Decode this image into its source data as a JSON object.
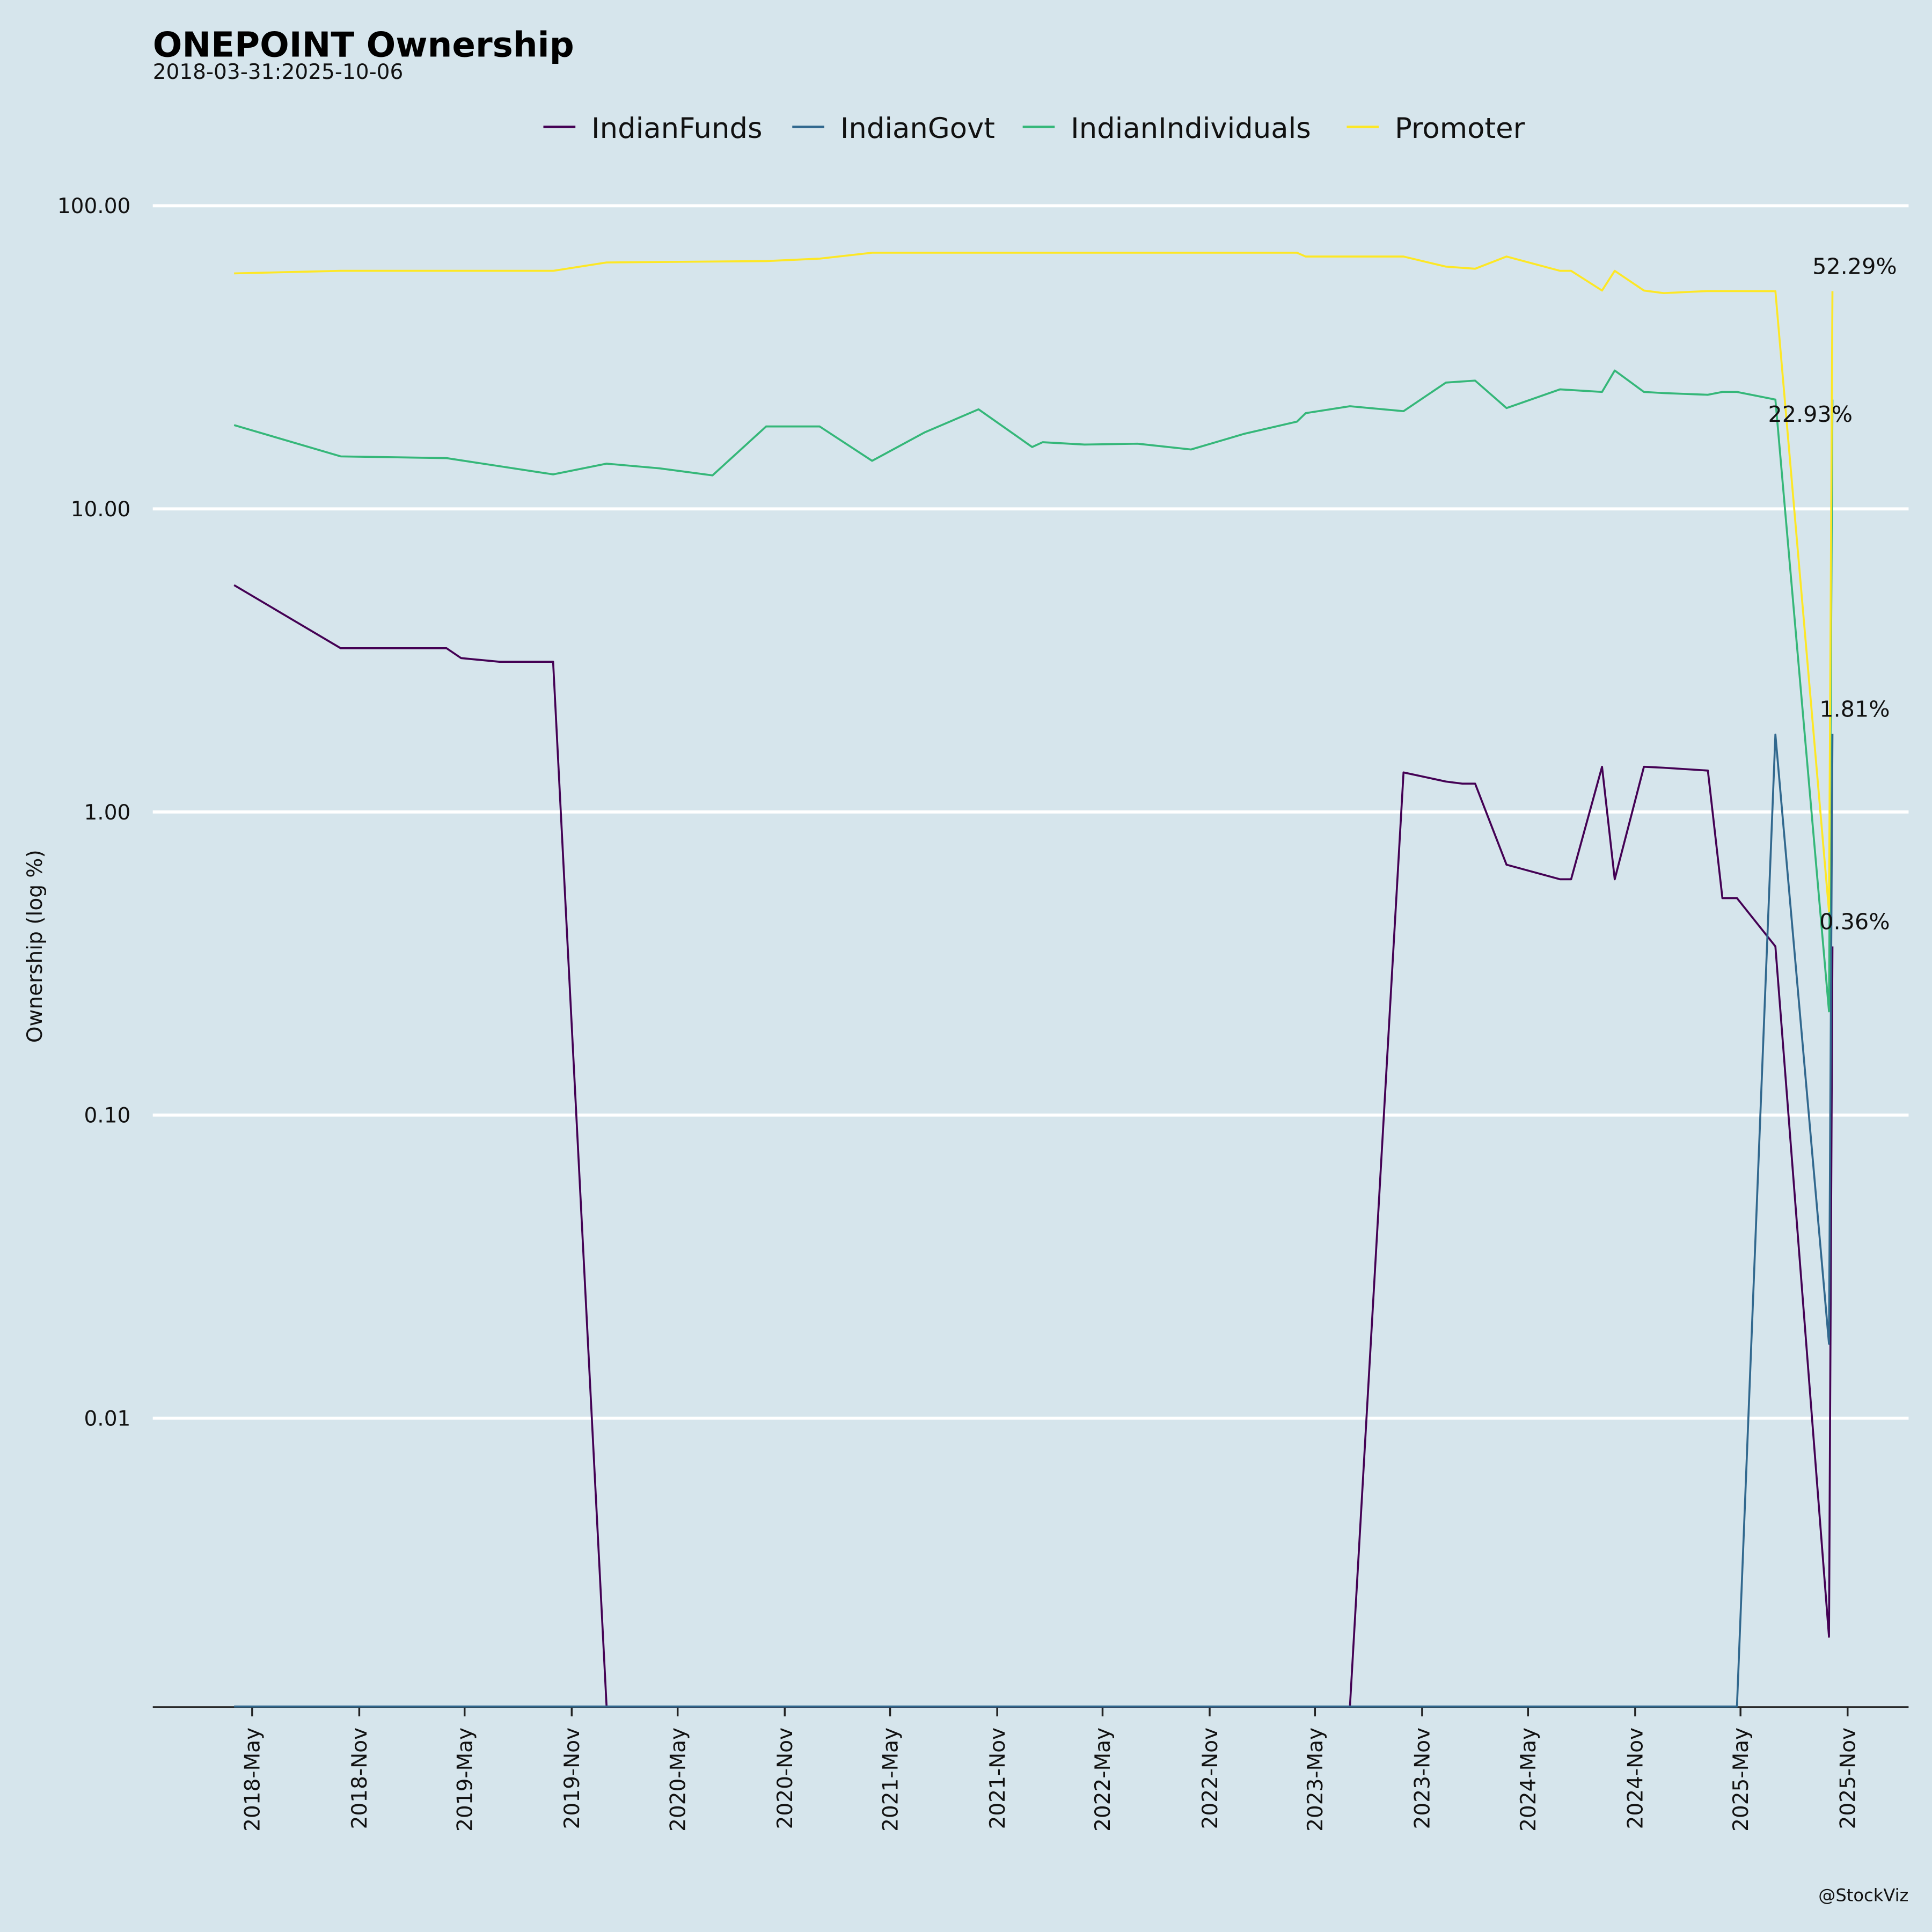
{
  "chart_data": {
    "type": "line",
    "title": "ONEPOINT Ownership",
    "subtitle": "2018-03-31:2025-10-06",
    "xlabel": "",
    "ylabel": "Ownership (log %)",
    "yscale": "log",
    "ylim": [
      0.0011,
      130
    ],
    "grid": true,
    "legend_placement": "top-center",
    "watermark": "@StockViz",
    "y_ticks": [
      {
        "value": 100,
        "label": "100.00"
      },
      {
        "value": 10,
        "label": "10.00"
      },
      {
        "value": 1,
        "label": "1.00"
      },
      {
        "value": 0.1,
        "label": "0.10"
      },
      {
        "value": 0.01,
        "label": "0.01"
      }
    ],
    "x_ticks": [
      {
        "date": "2018-05-01",
        "label": "2018-May"
      },
      {
        "date": "2018-11-01",
        "label": "2018-Nov"
      },
      {
        "date": "2019-05-01",
        "label": "2019-May"
      },
      {
        "date": "2019-11-01",
        "label": "2019-Nov"
      },
      {
        "date": "2020-05-01",
        "label": "2020-May"
      },
      {
        "date": "2020-11-01",
        "label": "2020-Nov"
      },
      {
        "date": "2021-05-01",
        "label": "2021-May"
      },
      {
        "date": "2021-11-01",
        "label": "2021-Nov"
      },
      {
        "date": "2022-05-01",
        "label": "2022-May"
      },
      {
        "date": "2022-11-01",
        "label": "2022-Nov"
      },
      {
        "date": "2023-05-01",
        "label": "2023-May"
      },
      {
        "date": "2023-11-01",
        "label": "2023-Nov"
      },
      {
        "date": "2024-05-01",
        "label": "2024-May"
      },
      {
        "date": "2024-11-01",
        "label": "2024-Nov"
      },
      {
        "date": "2025-05-01",
        "label": "2025-May"
      },
      {
        "date": "2025-11-01",
        "label": "2025-Nov"
      }
    ],
    "series": [
      {
        "name": "IndianFunds",
        "color": "#440154",
        "end_label": "0.36%",
        "points": [
          [
            "2018-03-31",
            5.6
          ],
          [
            "2018-09-30",
            3.47
          ],
          [
            "2019-03-31",
            3.47
          ],
          [
            "2019-04-25",
            3.22
          ],
          [
            "2019-06-30",
            3.13
          ],
          [
            "2019-09-30",
            3.13
          ],
          [
            "2019-12-31",
            0
          ],
          [
            "2023-06-30",
            0
          ],
          [
            "2023-09-30",
            1.35
          ],
          [
            "2023-12-12",
            1.26
          ],
          [
            "2024-01-09",
            1.24
          ],
          [
            "2024-01-31",
            1.24
          ],
          [
            "2024-03-25",
            0.67
          ],
          [
            "2024-06-25",
            0.6
          ],
          [
            "2024-07-14",
            0.6
          ],
          [
            "2024-09-05",
            1.41
          ],
          [
            "2024-09-27",
            0.6
          ],
          [
            "2024-11-16",
            1.41
          ],
          [
            "2024-12-20",
            1.4
          ],
          [
            "2025-03-06",
            1.37
          ],
          [
            "2025-03-31",
            0.52
          ],
          [
            "2025-04-25",
            0.52
          ],
          [
            "2025-06-30",
            0.36
          ],
          [
            "2025-09-30",
            0.0019
          ],
          [
            "2025-10-06",
            0.36
          ]
        ]
      },
      {
        "name": "IndianGovt",
        "color": "#31688e",
        "end_label": "1.81%",
        "points": [
          [
            "2018-03-31",
            0
          ],
          [
            "2025-04-25",
            0
          ],
          [
            "2025-06-30",
            1.8
          ],
          [
            "2025-09-30",
            0.0176
          ],
          [
            "2025-10-06",
            1.81
          ]
        ]
      },
      {
        "name": "IndianIndividuals",
        "color": "#35b779",
        "end_label": "22.93%",
        "points": [
          [
            "2018-03-31",
            18.9
          ],
          [
            "2018-09-30",
            14.9
          ],
          [
            "2019-03-31",
            14.7
          ],
          [
            "2019-09-30",
            13.0
          ],
          [
            "2019-12-31",
            14.1
          ],
          [
            "2020-03-31",
            13.6
          ],
          [
            "2020-06-30",
            12.9
          ],
          [
            "2020-09-30",
            18.7
          ],
          [
            "2020-12-31",
            18.7
          ],
          [
            "2021-03-31",
            14.4
          ],
          [
            "2021-06-30",
            17.9
          ],
          [
            "2021-09-30",
            21.3
          ],
          [
            "2021-12-31",
            16.0
          ],
          [
            "2022-01-18",
            16.6
          ],
          [
            "2022-03-31",
            16.3
          ],
          [
            "2022-06-30",
            16.4
          ],
          [
            "2022-09-30",
            15.7
          ],
          [
            "2022-12-31",
            17.7
          ],
          [
            "2023-03-31",
            19.4
          ],
          [
            "2023-04-15",
            20.7
          ],
          [
            "2023-06-30",
            21.8
          ],
          [
            "2023-09-30",
            21.0
          ],
          [
            "2023-12-12",
            26.1
          ],
          [
            "2024-01-31",
            26.5
          ],
          [
            "2024-03-25",
            21.5
          ],
          [
            "2024-06-25",
            24.8
          ],
          [
            "2024-09-05",
            24.3
          ],
          [
            "2024-09-27",
            28.6
          ],
          [
            "2024-11-16",
            24.3
          ],
          [
            "2024-12-20",
            24.1
          ],
          [
            "2025-03-06",
            23.8
          ],
          [
            "2025-03-31",
            24.3
          ],
          [
            "2025-04-25",
            24.3
          ],
          [
            "2025-06-30",
            22.93
          ],
          [
            "2025-09-30",
            0.22
          ],
          [
            "2025-10-06",
            22.93
          ]
        ]
      },
      {
        "name": "Promoter",
        "color": "#fde725",
        "end_label": "52.29%",
        "points": [
          [
            "2018-03-31",
            59.8
          ],
          [
            "2018-09-30",
            61.0
          ],
          [
            "2019-09-30",
            61.0
          ],
          [
            "2019-12-31",
            65.0
          ],
          [
            "2020-09-30",
            65.7
          ],
          [
            "2020-12-31",
            66.9
          ],
          [
            "2021-03-31",
            70.0
          ],
          [
            "2023-03-31",
            70.0
          ],
          [
            "2023-04-15",
            68.0
          ],
          [
            "2023-09-30",
            68.0
          ],
          [
            "2023-12-12",
            63.0
          ],
          [
            "2024-01-31",
            62.0
          ],
          [
            "2024-03-25",
            68.0
          ],
          [
            "2024-06-25",
            61.0
          ],
          [
            "2024-07-14",
            61.0
          ],
          [
            "2024-09-05",
            52.5
          ],
          [
            "2024-09-27",
            61.0
          ],
          [
            "2024-11-16",
            52.5
          ],
          [
            "2024-12-20",
            51.5
          ],
          [
            "2025-03-06",
            52.3
          ],
          [
            "2025-06-30",
            52.29
          ],
          [
            "2025-09-30",
            0.47
          ],
          [
            "2025-10-06",
            52.29
          ]
        ]
      }
    ]
  }
}
